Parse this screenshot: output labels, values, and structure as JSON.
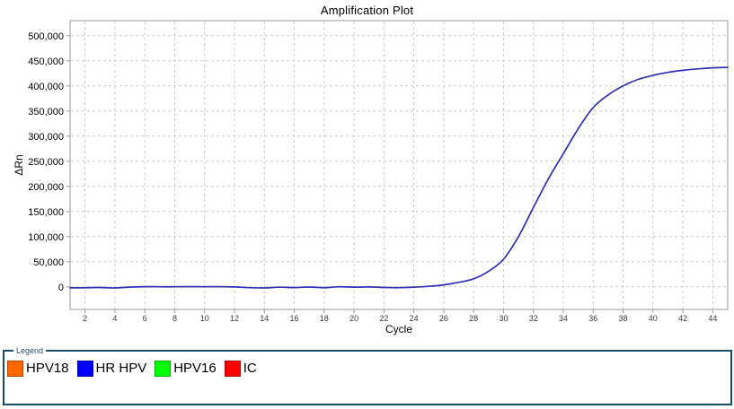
{
  "chart_data": {
    "type": "line",
    "title": "Amplification Plot",
    "xlabel": "Cycle",
    "ylabel": "ΔRn",
    "xlim": [
      1,
      45
    ],
    "ylim": [
      -45000,
      530000
    ],
    "x_ticks": [
      2,
      4,
      6,
      8,
      10,
      12,
      14,
      16,
      18,
      20,
      22,
      24,
      26,
      28,
      30,
      32,
      34,
      36,
      38,
      40,
      42,
      44
    ],
    "y_ticks": [
      0,
      50000,
      100000,
      150000,
      200000,
      250000,
      300000,
      350000,
      400000,
      450000,
      500000
    ],
    "grid": true,
    "grid_color": "#cccccc",
    "axis_border_color": "#999999",
    "tick_label_color": "#3a3a3a",
    "series": [
      {
        "name": "HR HPV",
        "color": "#3030b2",
        "x": [
          1,
          2,
          3,
          4,
          5,
          6,
          7,
          8,
          9,
          10,
          11,
          12,
          13,
          14,
          15,
          16,
          17,
          18,
          19,
          20,
          21,
          22,
          23,
          24,
          25,
          26,
          27,
          28,
          29,
          30,
          31,
          32,
          33,
          34,
          35,
          36,
          37,
          38,
          39,
          40,
          41,
          42,
          43,
          44,
          45
        ],
        "y": [
          -2000,
          -1800,
          -1200,
          -2200,
          -500,
          300,
          200,
          100,
          400,
          200,
          300,
          -200,
          -1600,
          -2100,
          -800,
          -1500,
          -300,
          -1700,
          200,
          -600,
          -200,
          -1200,
          -1600,
          -600,
          1000,
          4000,
          9000,
          16000,
          31000,
          55000,
          100000,
          158000,
          215000,
          265000,
          315000,
          357000,
          382000,
          400000,
          413000,
          421000,
          427000,
          431000,
          434000,
          436000,
          437000
        ]
      }
    ]
  },
  "legend": {
    "caption": "Legend",
    "border_color": "#1b4a63",
    "items": [
      {
        "label": "HPV18",
        "color": "#ff6600"
      },
      {
        "label": "HR HPV",
        "color": "#0000ff"
      },
      {
        "label": "HPV16",
        "color": "#00ff00"
      },
      {
        "label": "IC",
        "color": "#ff0000"
      }
    ]
  }
}
